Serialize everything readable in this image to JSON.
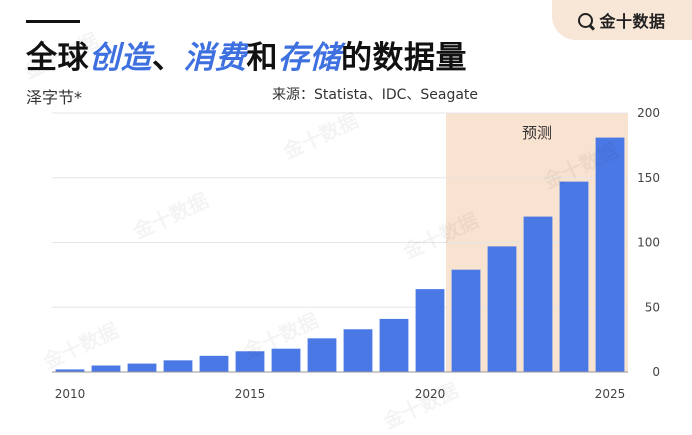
{
  "brand": {
    "name": "金十数据",
    "icon": "search-magnifier-logo"
  },
  "header": {
    "title_parts": [
      {
        "text": "全球",
        "highlight": false
      },
      {
        "text": "创造",
        "highlight": true
      },
      {
        "text": "、",
        "highlight": false
      },
      {
        "text": "消费",
        "highlight": true
      },
      {
        "text": "和",
        "highlight": false
      },
      {
        "text": "存储",
        "highlight": true
      },
      {
        "text": "的数据量",
        "highlight": false
      }
    ],
    "subtitle": "泽字节*",
    "source": "来源：Statista、IDC、Seagate"
  },
  "colors": {
    "bar": "#4a79e6",
    "forecast_band": "#f8e2d0",
    "highlight_text": "#3e70e0"
  },
  "chart_data": {
    "type": "bar",
    "categories": [
      "2010",
      "2011",
      "2012",
      "2013",
      "2014",
      "2015",
      "2016",
      "2017",
      "2018",
      "2019",
      "2020",
      "2021",
      "2022",
      "2023",
      "2024",
      "2025"
    ],
    "values": [
      2,
      5,
      6.5,
      9,
      12.5,
      16,
      18,
      26,
      33,
      41,
      64,
      79,
      97,
      120,
      147,
      181
    ],
    "xticks": [
      "2010",
      "2015",
      "2020",
      "2025"
    ],
    "yticks": [
      0,
      50,
      100,
      150,
      200
    ],
    "ylim": [
      0,
      200
    ],
    "y_axis_side": "right",
    "grid": true,
    "forecast": {
      "label": "预测",
      "from": "2021",
      "to": "2025"
    }
  }
}
